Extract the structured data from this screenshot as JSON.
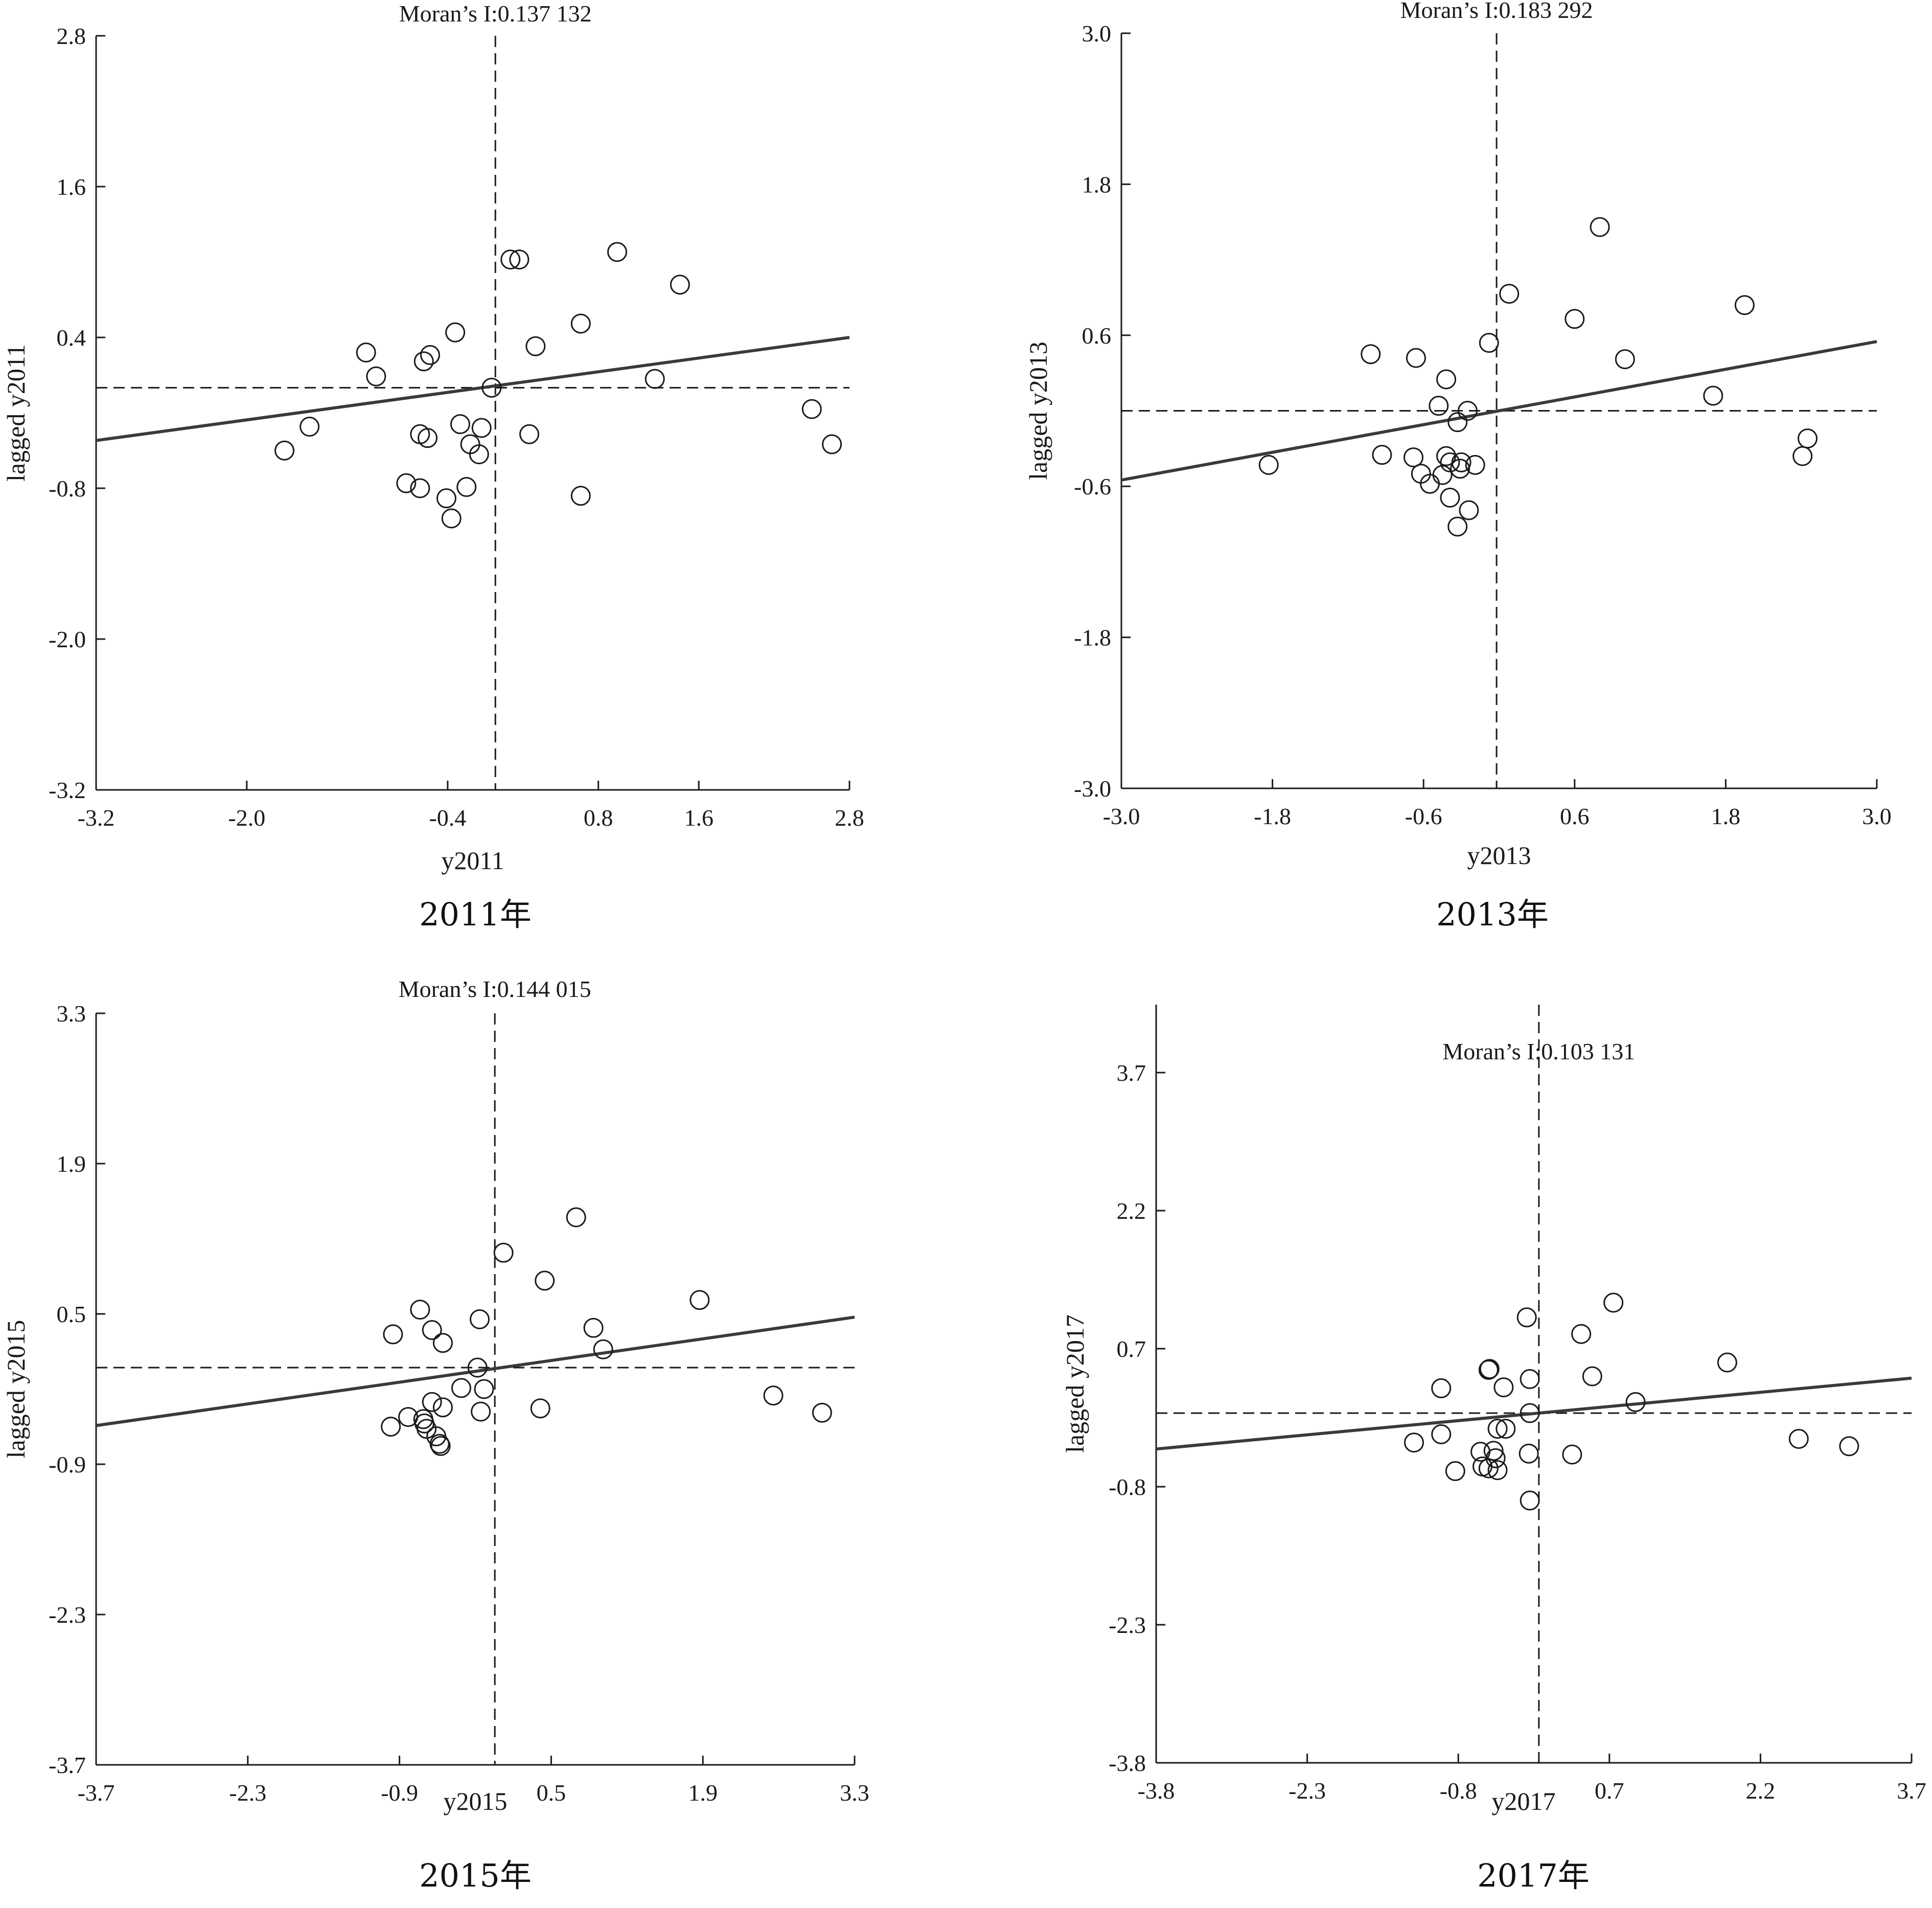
{
  "chart_data": [
    {
      "type": "scatter",
      "caption": "2011年",
      "title": "Moran’s I:0.137 132",
      "xlabel": "y2011",
      "ylabel": "lagged y2011",
      "xlim": [
        -3.2,
        2.8
      ],
      "ylim": [
        -3.2,
        2.8
      ],
      "xticks": [
        "-3.2",
        "-2.0",
        "-0.4",
        "0.8",
        "1.6",
        "2.8"
      ],
      "yticks": [
        "2.8",
        "1.6",
        "0.4",
        "-0.8",
        "-2.0",
        "-3.2"
      ],
      "mean_x": -0.02,
      "mean_y": 0.0,
      "regression": {
        "x": [
          -3.2,
          2.8
        ],
        "y": [
          -0.42,
          0.4
        ]
      },
      "points": [
        [
          -1.7,
          -0.5
        ],
        [
          -1.5,
          -0.31
        ],
        [
          -1.05,
          0.28
        ],
        [
          -0.97,
          0.09
        ],
        [
          -0.73,
          -0.76
        ],
        [
          -0.62,
          -0.8
        ],
        [
          -0.62,
          -0.37
        ],
        [
          -0.56,
          -0.4
        ],
        [
          -0.59,
          0.21
        ],
        [
          -0.54,
          0.26
        ],
        [
          -0.41,
          -0.88
        ],
        [
          -0.37,
          -1.04
        ],
        [
          -0.34,
          0.44
        ],
        [
          -0.3,
          -0.29
        ],
        [
          -0.25,
          -0.79
        ],
        [
          -0.22,
          -0.45
        ],
        [
          -0.15,
          -0.53
        ],
        [
          -0.13,
          -0.32
        ],
        [
          -0.05,
          0.0
        ],
        [
          0.1,
          1.02
        ],
        [
          0.17,
          1.02
        ],
        [
          0.25,
          -0.37
        ],
        [
          0.3,
          0.33
        ],
        [
          0.66,
          0.51
        ],
        [
          0.66,
          -0.86
        ],
        [
          0.95,
          1.08
        ],
        [
          1.25,
          0.07
        ],
        [
          1.45,
          0.82
        ],
        [
          2.5,
          -0.17
        ],
        [
          2.66,
          -0.45
        ]
      ]
    },
    {
      "type": "scatter",
      "caption": "2013年",
      "title": "Moran’s I:0.183 292",
      "xlabel": "y2013",
      "ylabel": "lagged y2013",
      "xlim": [
        -3.0,
        3.0
      ],
      "ylim": [
        -3.0,
        3.0
      ],
      "xticks": [
        "-3.0",
        "-1.8",
        "-0.6",
        "0.6",
        "1.8",
        "3.0"
      ],
      "yticks": [
        "3.0",
        "1.8",
        "0.6",
        "-0.6",
        "-1.8",
        "-3.0"
      ],
      "mean_x": -0.02,
      "mean_y": 0.0,
      "regression": {
        "x": [
          -3.0,
          3.0
        ],
        "y": [
          -0.55,
          0.55
        ]
      },
      "points": [
        [
          -1.83,
          -0.43
        ],
        [
          -1.02,
          0.45
        ],
        [
          -0.93,
          -0.35
        ],
        [
          -0.66,
          0.42
        ],
        [
          -0.68,
          -0.37
        ],
        [
          -0.62,
          -0.5
        ],
        [
          -0.55,
          -0.58
        ],
        [
          -0.48,
          0.04
        ],
        [
          -0.45,
          -0.51
        ],
        [
          -0.42,
          0.25
        ],
        [
          -0.42,
          -0.36
        ],
        [
          -0.39,
          -0.41
        ],
        [
          -0.39,
          -0.69
        ],
        [
          -0.33,
          -0.09
        ],
        [
          -0.33,
          -0.92
        ],
        [
          -0.31,
          -0.46
        ],
        [
          -0.3,
          -0.41
        ],
        [
          -0.25,
          0.0
        ],
        [
          -0.24,
          -0.79
        ],
        [
          -0.19,
          -0.43
        ],
        [
          -0.08,
          0.54
        ],
        [
          0.08,
          0.93
        ],
        [
          0.6,
          0.73
        ],
        [
          0.8,
          1.46
        ],
        [
          1.0,
          0.41
        ],
        [
          1.7,
          0.12
        ],
        [
          1.95,
          0.84
        ],
        [
          2.41,
          -0.36
        ],
        [
          2.45,
          -0.22
        ]
      ]
    },
    {
      "type": "scatter",
      "caption": "2015年",
      "title": "Moran’s I:0.144 015",
      "xlabel": "y2015",
      "ylabel": "lagged y2015",
      "xlim": [
        -3.7,
        3.3
      ],
      "ylim": [
        -3.7,
        3.3
      ],
      "xticks": [
        "-3.7",
        "-2.3",
        "-0.9",
        "0.5",
        "1.9",
        "3.3"
      ],
      "yticks": [
        "3.3",
        "1.9",
        "0.5",
        "-0.9",
        "-2.3",
        "-3.7"
      ],
      "mean_x": -0.02,
      "mean_y": 0.0,
      "regression": {
        "x": [
          -3.7,
          3.3
        ],
        "y": [
          -0.54,
          0.47
        ]
      },
      "points": [
        [
          -0.98,
          -0.55
        ],
        [
          -0.96,
          0.31
        ],
        [
          -0.82,
          -0.46
        ],
        [
          -0.71,
          0.54
        ],
        [
          -0.68,
          -0.48
        ],
        [
          -0.67,
          -0.52
        ],
        [
          -0.65,
          -0.57
        ],
        [
          -0.6,
          0.35
        ],
        [
          -0.6,
          -0.32
        ],
        [
          -0.56,
          -0.64
        ],
        [
          -0.53,
          -0.71
        ],
        [
          -0.52,
          -0.73
        ],
        [
          -0.5,
          0.23
        ],
        [
          -0.5,
          -0.37
        ],
        [
          -0.33,
          -0.19
        ],
        [
          -0.18,
          0.0
        ],
        [
          -0.16,
          0.45
        ],
        [
          -0.15,
          -0.41
        ],
        [
          -0.12,
          -0.2
        ],
        [
          0.06,
          1.07
        ],
        [
          0.4,
          -0.38
        ],
        [
          0.44,
          0.81
        ],
        [
          0.73,
          1.4
        ],
        [
          0.89,
          0.37
        ],
        [
          0.98,
          0.17
        ],
        [
          1.87,
          0.63
        ],
        [
          2.55,
          -0.26
        ],
        [
          3.0,
          -0.42
        ]
      ]
    },
    {
      "type": "scatter",
      "caption": "2017年",
      "title": "Moran’s I:0.103 131",
      "xlabel": "y2017",
      "ylabel": "lagged y2017",
      "xlim": [
        -3.8,
        3.7
      ],
      "ylim": [
        -3.8,
        4.3
      ],
      "xticks": [
        "-3.8",
        "-2.3",
        "-0.8",
        "0.7",
        "2.2",
        "3.7"
      ],
      "yticks": [
        "3.7",
        "2.2",
        "0.7",
        "-0.8",
        "-2.3",
        "-3.8"
      ],
      "mean_x": 0.0,
      "mean_y": 0.0,
      "regression": {
        "x": [
          -3.8,
          3.7
        ],
        "y": [
          -0.39,
          0.38
        ]
      },
      "points": [
        [
          -1.24,
          -0.32
        ],
        [
          -0.97,
          0.27
        ],
        [
          -0.97,
          -0.23
        ],
        [
          -0.83,
          -0.63
        ],
        [
          -0.58,
          -0.42
        ],
        [
          -0.56,
          -0.58
        ],
        [
          -0.5,
          0.47
        ],
        [
          -0.5,
          -0.6
        ],
        [
          -0.49,
          0.48
        ],
        [
          -0.45,
          -0.41
        ],
        [
          -0.43,
          -0.49
        ],
        [
          -0.41,
          -0.62
        ],
        [
          -0.41,
          -0.17
        ],
        [
          -0.35,
          0.28
        ],
        [
          -0.33,
          -0.17
        ],
        [
          -0.12,
          1.04
        ],
        [
          -0.1,
          -0.44
        ],
        [
          -0.09,
          0.37
        ],
        [
          -0.09,
          -0.95
        ],
        [
          -0.09,
          0.0
        ],
        [
          0.33,
          -0.45
        ],
        [
          0.42,
          0.86
        ],
        [
          0.53,
          0.4
        ],
        [
          0.74,
          1.2
        ],
        [
          0.96,
          0.12
        ],
        [
          1.87,
          0.55
        ],
        [
          2.58,
          -0.28
        ],
        [
          3.08,
          -0.36
        ]
      ]
    }
  ]
}
